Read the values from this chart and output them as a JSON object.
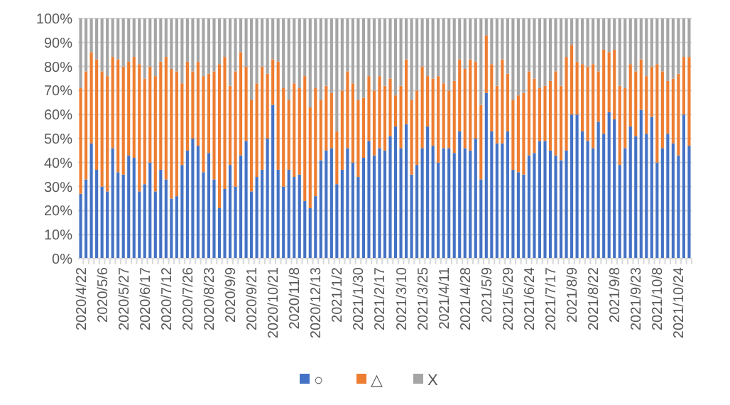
{
  "chart_data": {
    "type": "bar",
    "stacked": true,
    "categories": [
      "2020/4/22",
      null,
      null,
      null,
      "2020/5/6",
      null,
      null,
      null,
      "2020/5/27",
      null,
      null,
      null,
      "2020/6/17",
      null,
      null,
      null,
      "2020/7/12",
      null,
      null,
      null,
      "2020/7/26",
      null,
      null,
      null,
      "2020/8/23",
      null,
      null,
      null,
      "2020/9/9",
      null,
      null,
      null,
      "2020/9/21",
      null,
      null,
      null,
      "2020/10/21",
      null,
      null,
      null,
      "2020/11/8",
      null,
      null,
      null,
      "2020/12/13",
      null,
      null,
      null,
      "2021/1/2",
      null,
      null,
      null,
      "2021/1/30",
      null,
      null,
      null,
      "2021/2/17",
      null,
      null,
      null,
      "2021/3/10",
      null,
      null,
      null,
      "2021/3/25",
      null,
      null,
      null,
      "2021/4/11",
      null,
      null,
      null,
      "2021/4/28",
      null,
      null,
      null,
      "2021/5/9",
      null,
      null,
      null,
      "2021/5/29",
      null,
      null,
      null,
      "2021/6/24",
      null,
      null,
      null,
      "2021/7/17",
      null,
      null,
      null,
      "2021/8/9",
      null,
      null,
      null,
      "2021/8/22",
      null,
      null,
      null,
      "2021/9/8",
      null,
      null,
      null,
      "2021/9/23",
      null,
      null,
      null,
      "2021/10/8",
      null,
      null,
      null,
      "2021/10/24",
      null,
      null
    ],
    "series": [
      {
        "name": "○",
        "color": "#4472c4",
        "values": [
          27,
          33,
          48,
          37,
          30,
          28,
          46,
          36,
          35,
          43,
          42,
          28,
          31,
          40,
          28,
          37,
          33,
          25,
          26,
          39,
          45,
          50,
          47,
          36,
          44,
          33,
          21,
          29,
          39,
          30,
          43,
          49,
          28,
          34,
          37,
          50,
          64,
          37,
          30,
          37,
          34,
          35,
          24,
          21,
          26,
          41,
          45,
          46,
          31,
          37,
          46,
          40,
          34,
          42,
          49,
          43,
          46,
          45,
          51,
          55,
          46,
          56,
          35,
          39,
          46,
          55,
          47,
          40,
          46,
          46,
          44,
          53,
          46,
          45,
          50,
          33,
          69,
          53,
          48,
          48,
          53,
          37,
          36,
          35,
          43,
          44,
          49,
          49,
          45,
          43,
          41,
          45,
          60,
          60,
          53,
          49,
          46,
          57,
          52,
          61,
          58,
          39,
          46,
          55,
          51,
          62,
          52,
          59,
          40,
          46,
          52,
          48,
          43,
          60,
          47
        ]
      },
      {
        "name": "△",
        "color": "#ed7d31",
        "values": [
          44,
          45,
          38,
          46,
          48,
          48,
          38,
          47,
          45,
          39,
          42,
          53,
          44,
          40,
          48,
          45,
          51,
          54,
          52,
          34,
          37,
          28,
          35,
          40,
          33,
          45,
          60,
          55,
          33,
          48,
          43,
          31,
          38,
          39,
          43,
          27,
          19,
          45,
          41,
          29,
          39,
          36,
          52,
          42,
          45,
          25,
          27,
          23,
          22,
          33,
          32,
          33,
          32,
          25,
          27,
          27,
          30,
          27,
          24,
          13,
          26,
          27,
          31,
          31,
          34,
          21,
          28,
          36,
          27,
          24,
          30,
          30,
          33,
          38,
          32,
          31,
          24,
          28,
          24,
          35,
          24,
          29,
          32,
          34,
          35,
          31,
          22,
          23,
          29,
          35,
          31,
          39,
          29,
          22,
          28,
          31,
          35,
          21,
          35,
          25,
          29,
          33,
          25,
          26,
          27,
          21,
          24,
          21,
          41,
          32,
          22,
          27,
          34,
          24,
          37
        ]
      },
      {
        "name": "X",
        "color": "#a5a5a5",
        "values": [
          29,
          22,
          14,
          17,
          22,
          24,
          16,
          17,
          20,
          18,
          16,
          19,
          25,
          20,
          24,
          18,
          16,
          21,
          22,
          27,
          18,
          22,
          18,
          24,
          23,
          22,
          19,
          16,
          28,
          22,
          14,
          20,
          34,
          27,
          20,
          23,
          17,
          18,
          29,
          34,
          27,
          29,
          24,
          37,
          29,
          34,
          28,
          31,
          47,
          30,
          22,
          27,
          34,
          33,
          24,
          30,
          24,
          28,
          25,
          32,
          28,
          17,
          34,
          30,
          20,
          24,
          25,
          24,
          27,
          30,
          26,
          17,
          21,
          17,
          18,
          36,
          7,
          19,
          28,
          17,
          23,
          34,
          32,
          31,
          22,
          25,
          29,
          28,
          26,
          22,
          28,
          16,
          11,
          18,
          19,
          20,
          19,
          22,
          13,
          14,
          13,
          28,
          29,
          19,
          22,
          17,
          24,
          20,
          19,
          22,
          26,
          25,
          23,
          16,
          16
        ]
      }
    ],
    "ylim": [
      0,
      100
    ],
    "yticks": [
      {
        "value": 0,
        "label": "0%"
      },
      {
        "value": 10,
        "label": "10%"
      },
      {
        "value": 20,
        "label": "20%"
      },
      {
        "value": 30,
        "label": "30%"
      },
      {
        "value": 40,
        "label": "40%"
      },
      {
        "value": 50,
        "label": "50%"
      },
      {
        "value": 60,
        "label": "60%"
      },
      {
        "value": 70,
        "label": "70%"
      },
      {
        "value": 80,
        "label": "80%"
      },
      {
        "value": 90,
        "label": "90%"
      },
      {
        "value": 100,
        "label": "100%"
      }
    ],
    "grid": "y",
    "legend": "bottom"
  }
}
